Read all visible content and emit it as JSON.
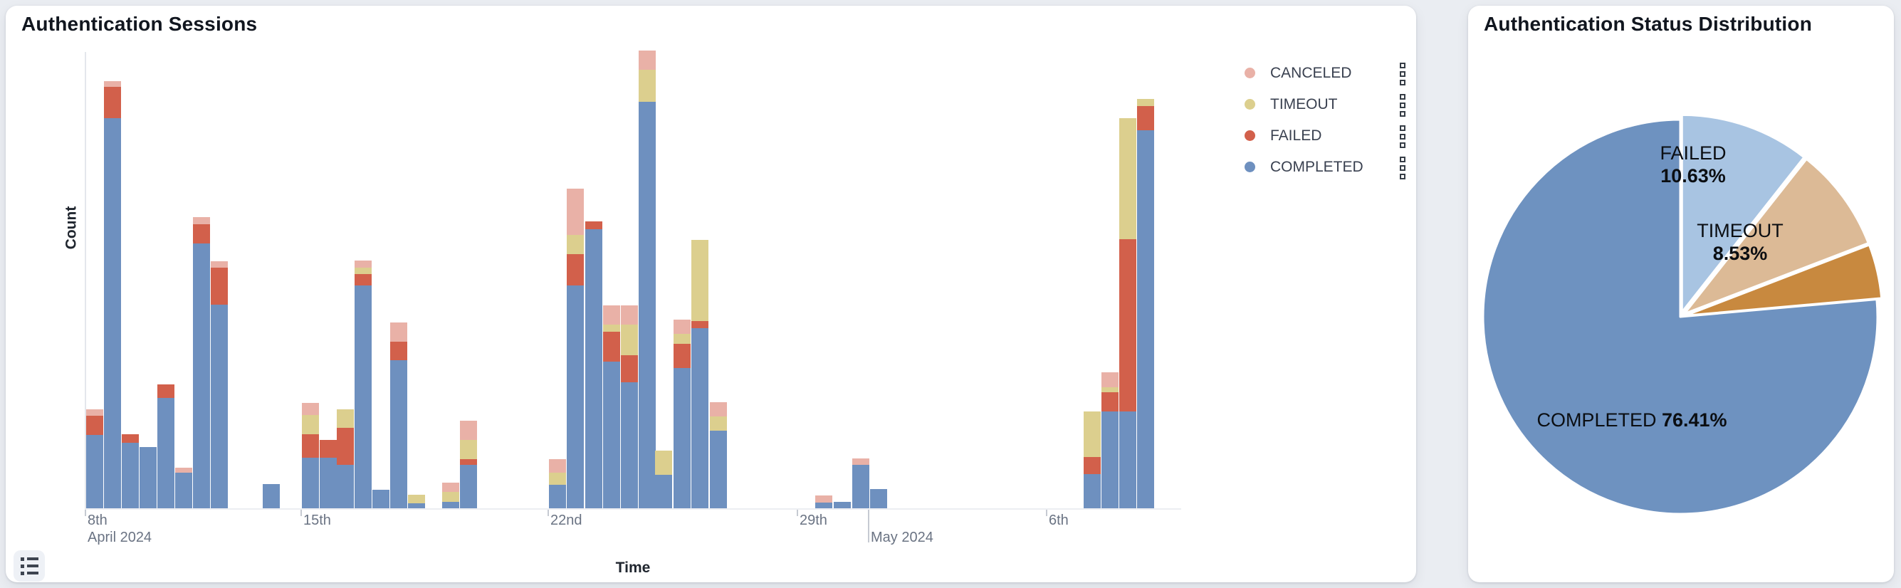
{
  "sessions_card": {
    "title": "Authentication Sessions",
    "x_axis_title": "Time",
    "y_axis_title": "Count",
    "legend": [
      {
        "label": "CANCELED",
        "color": "#e9b1a7"
      },
      {
        "label": "TIMEOUT",
        "color": "#dccf8e"
      },
      {
        "label": "FAILED",
        "color": "#d2604b"
      },
      {
        "label": "COMPLETED",
        "color": "#6e90bf"
      }
    ],
    "list_button_icon": "list-icon"
  },
  "distribution_card": {
    "title": "Authentication Status Distribution"
  },
  "chart_data": [
    {
      "type": "bar",
      "stacked": true,
      "title": "Authentication Sessions",
      "xlabel": "Time",
      "ylabel": "Count",
      "ylim": [
        0,
        650
      ],
      "grid": false,
      "legend_position": "right",
      "stack_order_bottom_to_top": [
        "COMPLETED",
        "FAILED",
        "TIMEOUT",
        "CANCELED"
      ],
      "colors": {
        "COMPLETED": "#6e90bf",
        "FAILED": "#d2604b",
        "TIMEOUT": "#dccf8e",
        "CANCELED": "#e9b1a7"
      },
      "x_ticks": [
        {
          "label": "8th",
          "sublabel": "April 2024",
          "x": 0,
          "long": false
        },
        {
          "label": "15th",
          "sublabel": "",
          "x": 303,
          "long": false
        },
        {
          "label": "22nd",
          "sublabel": "",
          "x": 650,
          "long": false
        },
        {
          "label": "29th",
          "sublabel": "",
          "x": 1000,
          "long": false
        },
        {
          "label": "",
          "sublabel": "May 2024",
          "x": 1100,
          "long": true
        },
        {
          "label": "6th",
          "sublabel": "",
          "x": 1350,
          "long": false
        }
      ],
      "bars": [
        {
          "t": "04-08 AM",
          "x": 0,
          "completed": 103,
          "failed": 27,
          "timeout": 0,
          "canceled": 9
        },
        {
          "t": "04-08 PM",
          "x": 25,
          "completed": 548,
          "failed": 44,
          "timeout": 0,
          "canceled": 8
        },
        {
          "t": "04-09 AM",
          "x": 50,
          "completed": 92,
          "failed": 12,
          "timeout": 0,
          "canceled": 0
        },
        {
          "t": "04-09 PM",
          "x": 75,
          "completed": 86,
          "failed": 0,
          "timeout": 0,
          "canceled": 0
        },
        {
          "t": "04-10 AM",
          "x": 100,
          "completed": 155,
          "failed": 19,
          "timeout": 0,
          "canceled": 0
        },
        {
          "t": "04-10 PM",
          "x": 125,
          "completed": 50,
          "failed": 0,
          "timeout": 0,
          "canceled": 7
        },
        {
          "t": "04-11 AM",
          "x": 150,
          "completed": 372,
          "failed": 27,
          "timeout": 0,
          "canceled": 10
        },
        {
          "t": "04-11 PM",
          "x": 175,
          "completed": 286,
          "failed": 52,
          "timeout": 0,
          "canceled": 9
        },
        {
          "t": "04-13 AM",
          "x": 248,
          "completed": 34,
          "failed": 0,
          "timeout": 0,
          "canceled": 0
        },
        {
          "t": "04-15 AM",
          "x": 303,
          "completed": 71,
          "failed": 33,
          "timeout": 27,
          "canceled": 17
        },
        {
          "t": "04-15 PM",
          "x": 328,
          "completed": 71,
          "failed": 25,
          "timeout": 0,
          "canceled": 0
        },
        {
          "t": "04-16 AM",
          "x": 352,
          "completed": 61,
          "failed": 52,
          "timeout": 26,
          "canceled": 0
        },
        {
          "t": "04-16 PM",
          "x": 377,
          "completed": 313,
          "failed": 16,
          "timeout": 9,
          "canceled": 10
        },
        {
          "t": "04-17 AM",
          "x": 402,
          "completed": 26,
          "failed": 0,
          "timeout": 0,
          "canceled": 0
        },
        {
          "t": "04-17 PM",
          "x": 427,
          "completed": 208,
          "failed": 26,
          "timeout": 0,
          "canceled": 27
        },
        {
          "t": "04-18 AM",
          "x": 452,
          "completed": 7,
          "failed": 0,
          "timeout": 12,
          "canceled": 0
        },
        {
          "t": "04-19 AM",
          "x": 500,
          "completed": 9,
          "failed": 0,
          "timeout": 14,
          "canceled": 13
        },
        {
          "t": "04-19 PM",
          "x": 525,
          "completed": 61,
          "failed": 8,
          "timeout": 27,
          "canceled": 27
        },
        {
          "t": "04-22 AM",
          "x": 650,
          "completed": 33,
          "failed": 0,
          "timeout": 17,
          "canceled": 19
        },
        {
          "t": "04-22 PM",
          "x": 675,
          "completed": 313,
          "failed": 44,
          "timeout": 27,
          "canceled": 65
        },
        {
          "t": "04-23 AM",
          "x": 701,
          "completed": 392,
          "failed": 11,
          "timeout": 0,
          "canceled": 0
        },
        {
          "t": "04-23 PM",
          "x": 726,
          "completed": 206,
          "failed": 42,
          "timeout": 10,
          "canceled": 27
        },
        {
          "t": "04-24 AM",
          "x": 751,
          "completed": 177,
          "failed": 38,
          "timeout": 43,
          "canceled": 27
        },
        {
          "t": "04-24 PM",
          "x": 776,
          "completed": 571,
          "failed": 0,
          "timeout": 45,
          "canceled": 27
        },
        {
          "t": "04-25 AM",
          "x": 799,
          "completed": 47,
          "failed": 0,
          "timeout": 34,
          "canceled": 0
        },
        {
          "t": "04-25 PM",
          "x": 825,
          "completed": 197,
          "failed": 34,
          "timeout": 14,
          "canceled": 20
        },
        {
          "t": "04-26 AM",
          "x": 850,
          "completed": 253,
          "failed": 10,
          "timeout": 114,
          "canceled": 0
        },
        {
          "t": "04-26 PM",
          "x": 876,
          "completed": 109,
          "failed": 0,
          "timeout": 20,
          "canceled": 20
        },
        {
          "t": "04-29 PM",
          "x": 1024,
          "completed": 8,
          "failed": 0,
          "timeout": 0,
          "canceled": 10
        },
        {
          "t": "04-30 AM",
          "x": 1050,
          "completed": 9,
          "failed": 0,
          "timeout": 0,
          "canceled": 0
        },
        {
          "t": "04-30 PM",
          "x": 1076,
          "completed": 61,
          "failed": 0,
          "timeout": 0,
          "canceled": 9
        },
        {
          "t": "05-01 AM",
          "x": 1101,
          "completed": 27,
          "failed": 0,
          "timeout": 0,
          "canceled": 0
        },
        {
          "t": "05-07 AM",
          "x": 1401,
          "completed": 48,
          "failed": 24,
          "timeout": 64,
          "canceled": 0
        },
        {
          "t": "05-07 PM",
          "x": 1426,
          "completed": 136,
          "failed": 27,
          "timeout": 7,
          "canceled": 21
        },
        {
          "t": "05-08 AM",
          "x": 1451,
          "completed": 136,
          "failed": 242,
          "timeout": 170,
          "canceled": 0
        },
        {
          "t": "05-08 PM",
          "x": 1476,
          "completed": 531,
          "failed": 34,
          "timeout": 10,
          "canceled": 0
        }
      ]
    },
    {
      "type": "pie",
      "title": "Authentication Status Distribution",
      "start_angle_deg": 0,
      "direction": "clockwise",
      "slices": [
        {
          "label": "FAILED",
          "pct": 10.63,
          "color": "#a8c4e2",
          "label_visible": true,
          "label_text": "FAILED",
          "pct_text": "10.63%"
        },
        {
          "label": "TIMEOUT",
          "pct": 8.53,
          "color": "#dcba96",
          "label_visible": true,
          "label_text": "TIMEOUT",
          "pct_text": "8.53%"
        },
        {
          "label": "CANCELED",
          "pct": 4.43,
          "color": "#c8893f",
          "label_visible": false,
          "label_text": "",
          "pct_text": ""
        },
        {
          "label": "COMPLETED",
          "pct": 76.41,
          "color": "#6e92c0",
          "label_visible": true,
          "label_text": "COMPLETED",
          "pct_text": "76.41%"
        }
      ]
    }
  ]
}
